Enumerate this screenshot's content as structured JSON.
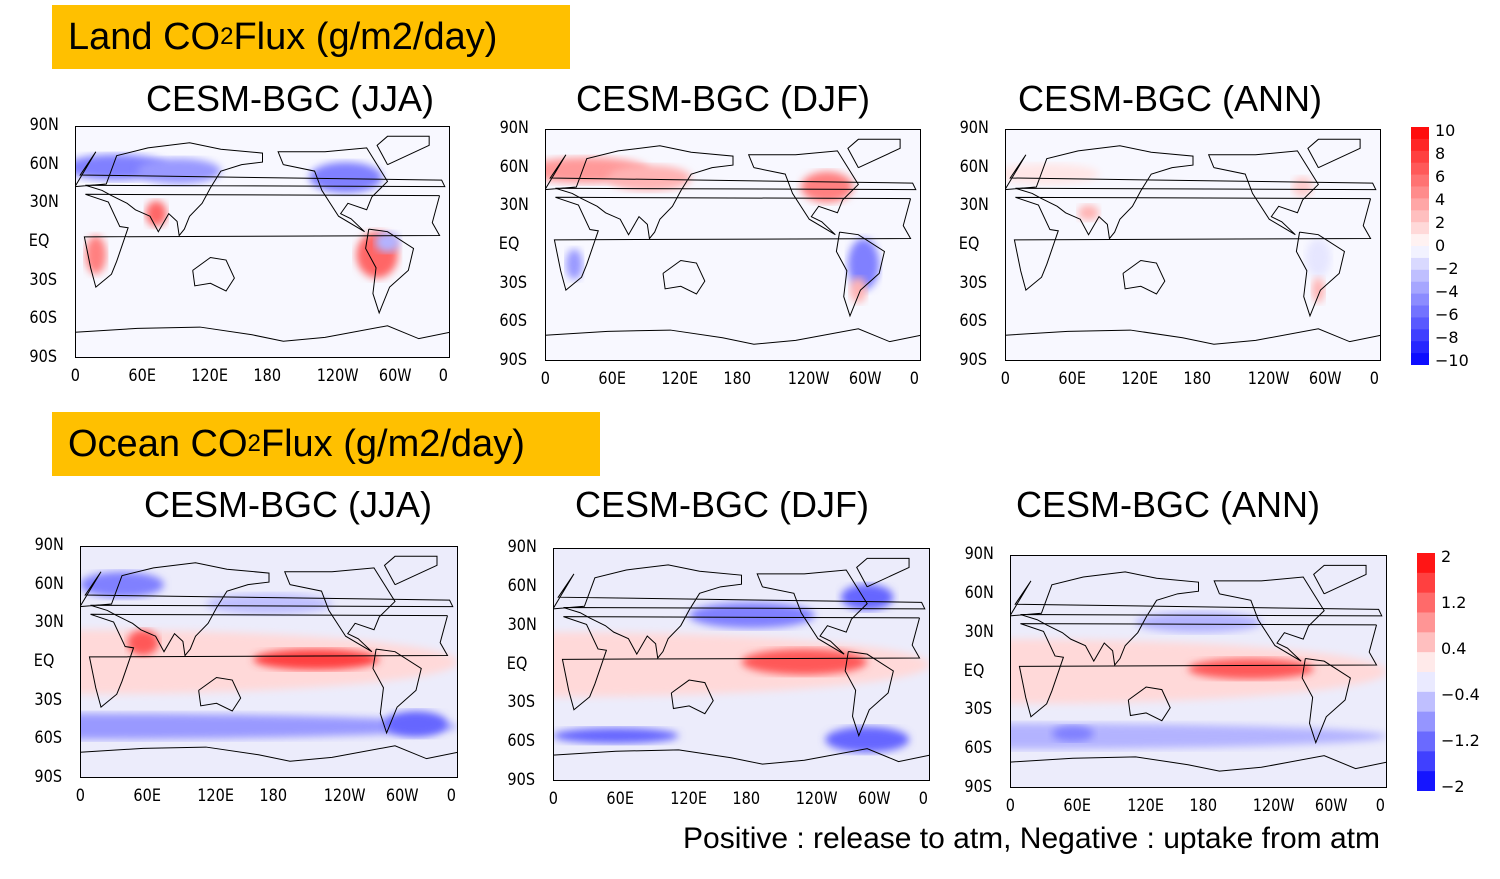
{
  "sections": [
    {
      "header_pre": "Land CO",
      "header_sub": "2",
      "header_post": " Flux (g/m2/day)",
      "kind": "land",
      "panels": [
        {
          "title": "CESM-BGC (JJA)"
        },
        {
          "title": "CESM-BGC (DJF)"
        },
        {
          "title": "CESM-BGC (ANN)"
        }
      ],
      "colorbar": {
        "labels": [
          "10",
          "8",
          "6",
          "4",
          "2",
          "0",
          "−2",
          "−4",
          "−6",
          "−8",
          "−10"
        ],
        "min": -10,
        "max": 10
      }
    },
    {
      "header_pre": "Ocean CO",
      "header_sub": "2",
      "header_post": " Flux (g/m2/day)",
      "kind": "ocean",
      "panels": [
        {
          "title": "CESM-BGC (JJA)"
        },
        {
          "title": "CESM-BGC (DJF)"
        },
        {
          "title": "CESM-BGC (ANN)"
        }
      ],
      "colorbar": {
        "labels": [
          "2",
          "1.2",
          "0.4",
          "−0.4",
          "−1.2",
          "−2"
        ],
        "min": -2,
        "max": 2
      }
    }
  ],
  "lat_ticks": [
    "90N",
    "60N",
    "30N",
    "EQ",
    "30S",
    "60S",
    "90S"
  ],
  "lon_ticks": [
    "0",
    "60E",
    "120E",
    "180",
    "120W",
    "60W",
    "0"
  ],
  "colors": {
    "positive": "#ff0000",
    "negative": "#0000ff",
    "header_bg": "#ffc000"
  },
  "footer": "Positive : release to atm, Negative : uptake from atm"
}
